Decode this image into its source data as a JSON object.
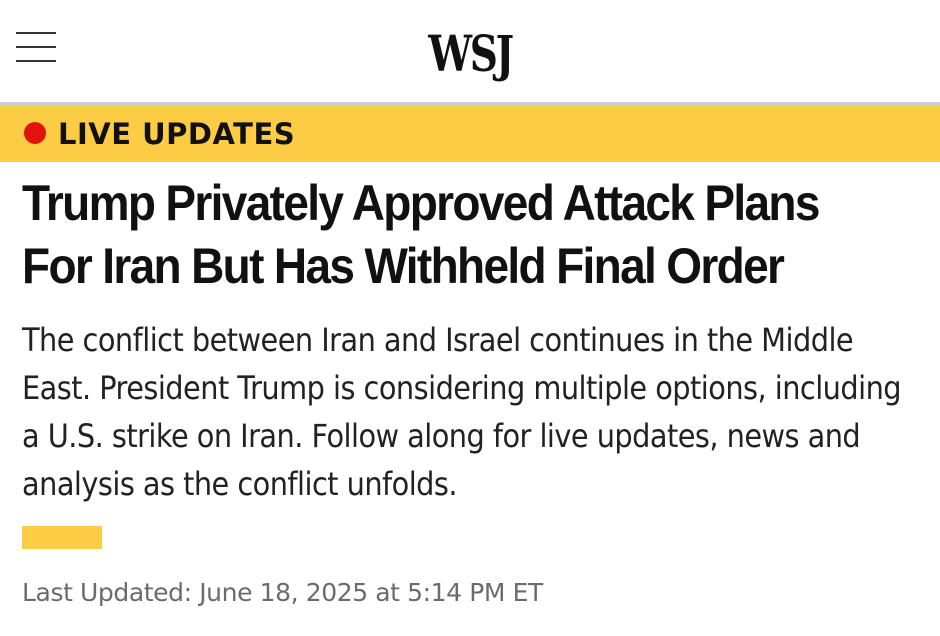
{
  "header": {
    "logo_text": "WSJ",
    "menu_icon": "hamburger-menu-icon"
  },
  "banner": {
    "label": "LIVE UPDATES",
    "dot_color": "#e3120b",
    "background_color": "#fbcc44"
  },
  "article": {
    "headline": "Trump Privately Approved Attack Plans For Iran But Has Withheld Final Order",
    "dek": "The conflict between Iran and Israel continues in the Middle East. President Trump is considering multiple options, including a U.S. strike on Iran. Follow along for live updates, news and analysis as the conflict unfolds.",
    "timestamp": "Last Updated: June 18, 2025 at 5:14 PM ET"
  }
}
